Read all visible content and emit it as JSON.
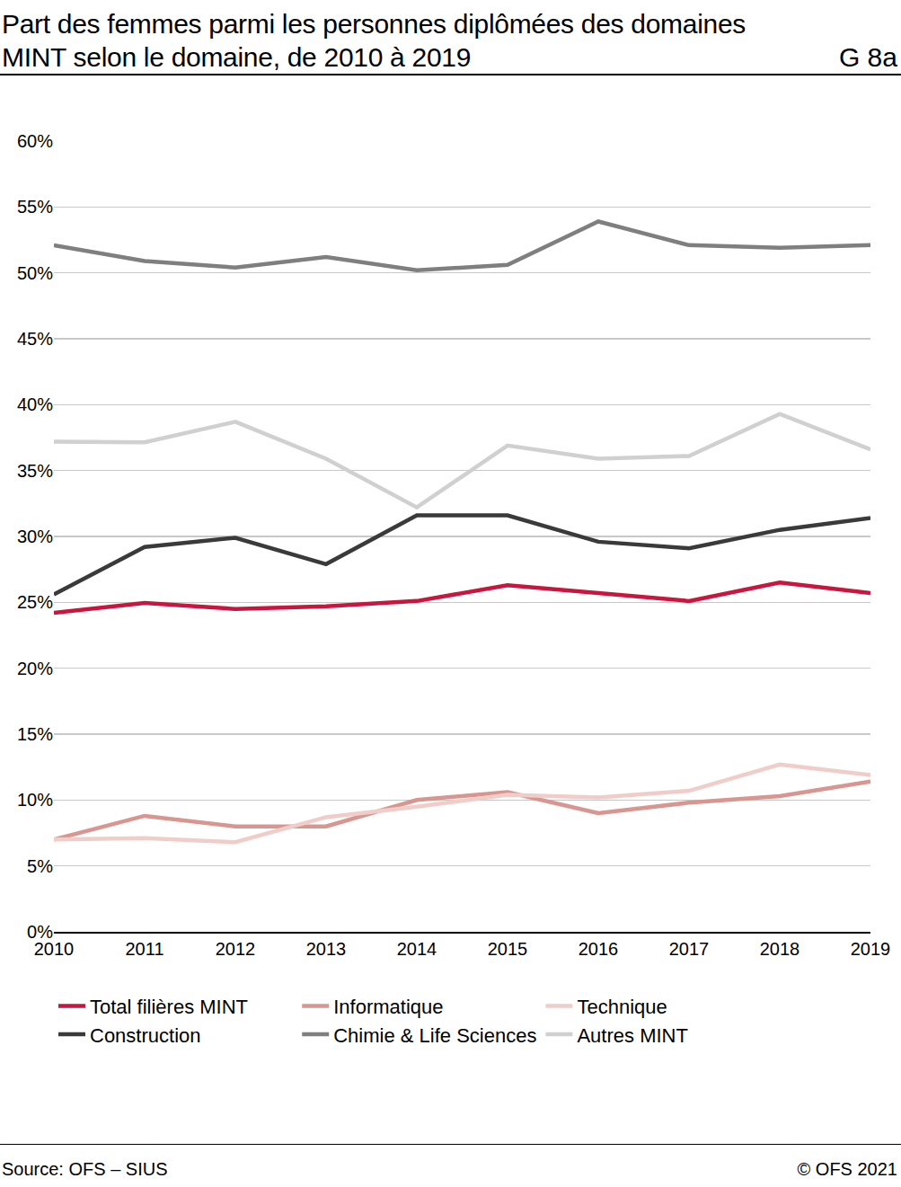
{
  "chart_data": {
    "type": "line",
    "title": "Part des femmes parmi les personnes diplômées des domaines MINT selon le domaine, de 2010 à 2019",
    "label": "G 8a",
    "source": "Source: OFS – SIUS",
    "credit": "© OFS 2021",
    "categories": [
      "2010",
      "2011",
      "2012",
      "2013",
      "2014",
      "2015",
      "2016",
      "2017",
      "2018",
      "2019"
    ],
    "series": [
      {
        "name": "Total filières MINT",
        "color": "#c8163e",
        "values": [
          24.2,
          24.95,
          24.5,
          24.7,
          25.1,
          26.3,
          25.7,
          25.1,
          26.5,
          25.7
        ]
      },
      {
        "name": "Informatique",
        "color": "#d9958f",
        "values": [
          7.0,
          8.8,
          8.0,
          8.0,
          10.0,
          10.6,
          9.0,
          9.8,
          10.3,
          11.4
        ]
      },
      {
        "name": "Technique",
        "color": "#f0cdc8",
        "values": [
          7.0,
          7.1,
          6.8,
          8.7,
          9.5,
          10.4,
          10.2,
          10.7,
          12.7,
          11.9
        ]
      },
      {
        "name": "Construction",
        "color": "#3a3a3a",
        "values": [
          25.6,
          29.2,
          29.9,
          27.9,
          31.6,
          31.6,
          29.6,
          29.1,
          30.5,
          31.4
        ]
      },
      {
        "name": "Chimie & Life Sciences",
        "color": "#7f7f7f",
        "values": [
          52.1,
          50.9,
          50.4,
          51.2,
          50.2,
          50.6,
          53.9,
          52.1,
          51.9,
          52.1
        ]
      },
      {
        "name": "Autres MINT",
        "color": "#d0d0d0",
        "values": [
          37.2,
          37.15,
          38.7,
          35.9,
          32.2,
          36.9,
          35.9,
          36.1,
          39.3,
          36.6
        ]
      }
    ],
    "ylim": [
      0,
      60
    ],
    "yticks": [
      {
        "value": 0,
        "label": "0%"
      },
      {
        "value": 5,
        "label": "5%"
      },
      {
        "value": 10,
        "label": "10%"
      },
      {
        "value": 15,
        "label": "15%"
      },
      {
        "value": 20,
        "label": "20%"
      },
      {
        "value": 25,
        "label": "25%"
      },
      {
        "value": 30,
        "label": "30%"
      },
      {
        "value": 35,
        "label": "35%"
      },
      {
        "value": 40,
        "label": "40%"
      },
      {
        "value": 45,
        "label": "45%"
      },
      {
        "value": 50,
        "label": "50%"
      },
      {
        "value": 55,
        "label": "55%"
      },
      {
        "value": 60,
        "label": "60%"
      }
    ],
    "grid": true,
    "legend": "bottom"
  }
}
